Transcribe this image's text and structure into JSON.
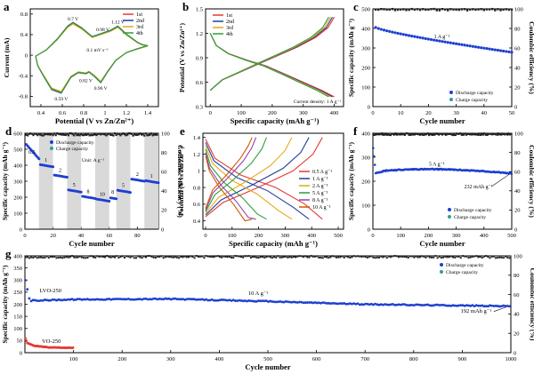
{
  "chart_data": [
    {
      "id": "a",
      "panel_label": "a",
      "type": "line",
      "xlabel": "Potential (V vs Zn/Zn²⁺)",
      "ylabel": "Current (mA)",
      "xlim": [
        0.3,
        1.5
      ],
      "ylim": [
        -1.0,
        0.9
      ],
      "xticks": [
        0.4,
        0.6,
        0.8,
        1.0,
        1.2,
        1.4
      ],
      "yticks": [
        -0.8,
        -0.4,
        0.0,
        0.4,
        0.8
      ],
      "legend_position": "top-right",
      "series": [
        {
          "name": "1st",
          "color": "#e53935"
        },
        {
          "name": "2nd",
          "color": "#1e3f9e"
        },
        {
          "name": "3rd",
          "color": "#e6a817"
        },
        {
          "name": "4th",
          "color": "#2e9e3a"
        }
      ],
      "cv_oxidation": [
        [
          0.35,
          -0.02
        ],
        [
          0.45,
          0.1
        ],
        [
          0.55,
          0.3
        ],
        [
          0.65,
          0.55
        ],
        [
          0.7,
          0.62
        ],
        [
          0.78,
          0.52
        ],
        [
          0.88,
          0.35
        ],
        [
          0.95,
          0.4
        ],
        [
          1.05,
          0.47
        ],
        [
          1.12,
          0.55
        ],
        [
          1.2,
          0.4
        ],
        [
          1.3,
          0.25
        ],
        [
          1.35,
          0.2
        ],
        [
          1.4,
          0.18
        ]
      ],
      "cv_reduction": [
        [
          1.4,
          0.18
        ],
        [
          1.3,
          0.12
        ],
        [
          1.2,
          0.05
        ],
        [
          1.1,
          -0.1
        ],
        [
          1.03,
          -0.3
        ],
        [
          0.96,
          -0.52
        ],
        [
          0.9,
          -0.4
        ],
        [
          0.85,
          -0.32
        ],
        [
          0.82,
          -0.35
        ],
        [
          0.75,
          -0.33
        ],
        [
          0.68,
          -0.42
        ],
        [
          0.59,
          -0.72
        ],
        [
          0.5,
          -0.65
        ],
        [
          0.42,
          -0.38
        ],
        [
          0.37,
          -0.2
        ],
        [
          0.35,
          -0.02
        ]
      ],
      "annotations": [
        {
          "text": "0.7 V",
          "x": 0.7,
          "y": 0.62
        },
        {
          "text": "0.98 V",
          "x": 0.98,
          "y": 0.42
        },
        {
          "text": "1.12 V",
          "x": 1.12,
          "y": 0.56
        },
        {
          "text": "0.1 mV s⁻¹",
          "x": 0.93,
          "y": 0.02
        },
        {
          "text": "0.82 V",
          "x": 0.82,
          "y": -0.37
        },
        {
          "text": "0.59 V",
          "x": 0.59,
          "y": -0.72
        },
        {
          "text": "0.96 V",
          "x": 0.96,
          "y": -0.52
        }
      ]
    },
    {
      "id": "b",
      "panel_label": "b",
      "type": "line",
      "xlabel": "Specific capacity (mAh g⁻¹)",
      "ylabel": "Potential (V vs Zn/Zn²⁺)",
      "xlim": [
        -15,
        430
      ],
      "ylim": [
        0.3,
        1.5
      ],
      "xticks": [
        0,
        100,
        200,
        300,
        400
      ],
      "yticks": [
        0.3,
        0.6,
        0.9,
        1.2,
        1.5
      ],
      "legend_position": "top-left",
      "series": [
        {
          "name": "1st",
          "color": "#e53935"
        },
        {
          "name": "2nd",
          "color": "#1e3f9e"
        },
        {
          "name": "3rd",
          "color": "#e6a817"
        },
        {
          "name": "4th",
          "color": "#2e9e3a"
        }
      ],
      "discharge_curve": [
        [
          0,
          1.2
        ],
        [
          20,
          1.05
        ],
        [
          60,
          0.95
        ],
        [
          120,
          0.87
        ],
        [
          180,
          0.8
        ],
        [
          240,
          0.7
        ],
        [
          300,
          0.6
        ],
        [
          360,
          0.5
        ],
        [
          400,
          0.42
        ]
      ],
      "charge_curve": [
        [
          0,
          0.5
        ],
        [
          40,
          0.63
        ],
        [
          100,
          0.73
        ],
        [
          160,
          0.83
        ],
        [
          220,
          0.93
        ],
        [
          280,
          1.03
        ],
        [
          340,
          1.15
        ],
        [
          380,
          1.27
        ],
        [
          400,
          1.4
        ]
      ],
      "annotations": [
        {
          "text": "Current density: 1 A g⁻¹"
        }
      ]
    },
    {
      "id": "c",
      "panel_label": "c",
      "type": "scatter",
      "xlabel": "Cycle number",
      "ylabel": "Specific capacity (mAh g⁻¹)",
      "y2label": "Coulombic efficiency (%)",
      "xlim": [
        0,
        50
      ],
      "ylim": [
        0,
        500
      ],
      "y2lim": [
        0,
        100
      ],
      "xticks": [
        0,
        10,
        20,
        30,
        40,
        50
      ],
      "yticks": [
        0,
        100,
        200,
        300,
        400,
        500
      ],
      "y2ticks": [
        0,
        20,
        40,
        60,
        80,
        100
      ],
      "legend_position": "bottom-right",
      "series": [
        {
          "name": "Discharge capacity",
          "color": "#1e3fd0",
          "start": 405,
          "end": 278
        },
        {
          "name": "Charge capacity",
          "color": "#2aa198"
        }
      ],
      "coulombic_efficiency": 100,
      "annotations": [
        {
          "text": "1 A g⁻¹"
        }
      ]
    },
    {
      "id": "d",
      "panel_label": "d",
      "type": "scatter",
      "xlabel": "Cycle number",
      "ylabel": "Specific capacity (mAh g⁻¹)",
      "y2label": "Coulombic efficiency (%)",
      "xlim": [
        0,
        95
      ],
      "ylim": [
        0,
        600
      ],
      "y2lim": [
        0,
        100
      ],
      "xticks": [
        0,
        20,
        40,
        60,
        80
      ],
      "yticks": [
        0,
        100,
        200,
        300,
        400,
        500,
        600
      ],
      "y2ticks": [
        0,
        20,
        40,
        60,
        80,
        100
      ],
      "legend_position": "top-center",
      "series": [
        {
          "name": "Discharge capacity",
          "color": "#1e3fd0"
        },
        {
          "name": "Charge capacity",
          "color": "#2aa198"
        }
      ],
      "rate_steps": [
        {
          "label": "0.5",
          "from": 0,
          "to": 10,
          "capacity": 440
        },
        {
          "label": "1",
          "from": 10,
          "to": 20,
          "capacity": 390
        },
        {
          "label": "2",
          "from": 20,
          "to": 30,
          "capacity": 325
        },
        {
          "label": "5",
          "from": 30,
          "to": 40,
          "capacity": 232
        },
        {
          "label": "8",
          "from": 40,
          "to": 50,
          "capacity": 192
        },
        {
          "label": "10",
          "from": 50,
          "to": 60,
          "capacity": 175
        },
        {
          "label": "8",
          "from": 60,
          "to": 65,
          "capacity": 190
        },
        {
          "label": "5",
          "from": 65,
          "to": 75,
          "capacity": 230
        },
        {
          "label": "2",
          "from": 75,
          "to": 85,
          "capacity": 300
        },
        {
          "label": "1",
          "from": 85,
          "to": 95,
          "capacity": 290
        }
      ],
      "coulombic_efficiency": 100,
      "unit_text": "Unit: A g⁻¹"
    },
    {
      "id": "e",
      "panel_label": "e",
      "type": "line",
      "xlabel": "Specific capacity (mAh g⁻¹)",
      "ylabel": "Potential (V vs Zn/Zn²⁺)",
      "xlim": [
        -10,
        520
      ],
      "ylim": [
        0.3,
        1.45
      ],
      "xticks": [
        0,
        100,
        200,
        300,
        400,
        500
      ],
      "yticks": [
        0.4,
        0.6,
        0.8,
        1.0,
        1.2,
        1.4
      ],
      "legend_position": "right",
      "series": [
        {
          "name": "0.5 A g⁻¹",
          "color": "#e53935",
          "capacity": 440
        },
        {
          "name": "1 A g⁻¹",
          "color": "#1e3f9e",
          "capacity": 390
        },
        {
          "name": "2 A g⁻¹",
          "color": "#e6a817",
          "capacity": 325
        },
        {
          "name": "5 A g⁻¹",
          "color": "#2e9e3a",
          "capacity": 230
        },
        {
          "name": "8 A g⁻¹",
          "color": "#8e44ad",
          "capacity": 190
        },
        {
          "name": "10 A g⁻¹",
          "color": "#d35400",
          "capacity": 175
        }
      ]
    },
    {
      "id": "f",
      "panel_label": "f",
      "type": "scatter",
      "xlabel": "Cycle number",
      "ylabel": "Specific capacity (mAh g⁻¹)",
      "y2label": "Coulombic efficiency (%)",
      "xlim": [
        0,
        500
      ],
      "ylim": [
        0,
        400
      ],
      "y2lim": [
        0,
        100
      ],
      "xticks": [
        0,
        100,
        200,
        300,
        400,
        500
      ],
      "yticks": [
        0,
        100,
        200,
        300,
        400
      ],
      "y2ticks": [
        0,
        20,
        40,
        60,
        80,
        100
      ],
      "legend_position": "bottom-right",
      "series": [
        {
          "name": "Discharge capacity",
          "color": "#1e3fd0"
        },
        {
          "name": "Charge capacity",
          "color": "#2aa198"
        }
      ],
      "capacity_profile": [
        [
          1,
          340
        ],
        [
          10,
          235
        ],
        [
          50,
          245
        ],
        [
          150,
          250
        ],
        [
          250,
          250
        ],
        [
          350,
          245
        ],
        [
          450,
          238
        ],
        [
          500,
          232
        ]
      ],
      "coulombic_efficiency": 100,
      "annotations": [
        {
          "text": "5 A g⁻¹"
        },
        {
          "text": "232 mAh g⁻¹"
        }
      ]
    },
    {
      "id": "g",
      "panel_label": "g",
      "type": "scatter",
      "xlabel": "Cycle number",
      "ylabel": "Specific capacity (mAh g⁻¹)",
      "y2label": "Coulombic efficiency (%)",
      "xlim": [
        0,
        1000
      ],
      "ylim": [
        0,
        400
      ],
      "y2lim": [
        0,
        100
      ],
      "xticks": [
        100,
        200,
        300,
        400,
        500,
        600,
        700,
        800,
        900,
        1000
      ],
      "yticks": [
        0,
        50,
        100,
        150,
        200,
        250,
        300,
        350,
        400
      ],
      "y2ticks": [
        0,
        20,
        40,
        60,
        80,
        100
      ],
      "legend_position": "top-right",
      "series": [
        {
          "name": "Discharge capacity",
          "color": "#1e3fd0"
        },
        {
          "name": "Charge capacity",
          "color": "#2aa198"
        }
      ],
      "lvo_profile": [
        [
          1,
          300
        ],
        [
          10,
          215
        ],
        [
          100,
          220
        ],
        [
          300,
          222
        ],
        [
          500,
          212
        ],
        [
          700,
          200
        ],
        [
          900,
          195
        ],
        [
          1000,
          192
        ]
      ],
      "vo_profile": [
        [
          1,
          60
        ],
        [
          5,
          40
        ],
        [
          20,
          28
        ],
        [
          50,
          22
        ],
        [
          100,
          20
        ]
      ],
      "coulombic_efficiency": 100,
      "annotations": [
        {
          "text": "LVO-250"
        },
        {
          "text": "VO-250"
        },
        {
          "text": "10 A g⁻¹"
        },
        {
          "text": "192 mAh g⁻¹"
        }
      ]
    }
  ]
}
